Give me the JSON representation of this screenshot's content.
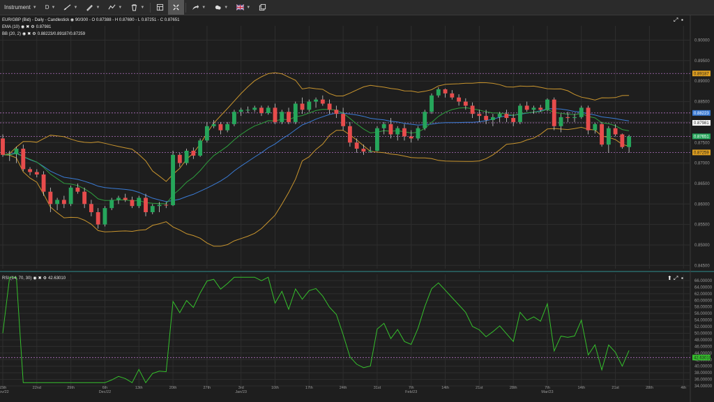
{
  "toolbar": {
    "instrument_label": "Instrument",
    "timeframe_label": "D",
    "icons": [
      "line-tool-icon",
      "brush-icon",
      "pattern-tool-icon",
      "trash-icon",
      "layout-icon",
      "crosshair-icon",
      "share-icon",
      "weather-icon",
      "flag-uk-icon",
      "windows-icon"
    ]
  },
  "header": {
    "instrument_line": "EUR/GBP (Bid) - Daily - Candlestick",
    "bars": "90/300",
    "ohlc": "- O 0.87388 - H 0.87690 - L 0.87251 - C 0.87651",
    "ema_label": "EMA (10)",
    "ema_value": "0.87981",
    "bb_label": "BB (20, 2)",
    "bb_value": "0.88223/0.89187/0.87259",
    "rsi_label": "RSI (14, 70, 30)",
    "rsi_value": "42.63010"
  },
  "colors": {
    "background": "#1e1e1e",
    "grid": "#2e2e2e",
    "up": "#26a65b",
    "down": "#e74c4c",
    "ema": "#2e9e3e",
    "bb_band": "#c9952e",
    "bb_mid": "#3a7bd5",
    "rsi": "#35c02c",
    "level_line": "#b070c0"
  },
  "chart_data": [
    {
      "type": "candlestick",
      "name": "EUR/GBP (Bid) - Daily - Candlestick",
      "ylim": [
        0.8442,
        0.9035
      ],
      "y_ticks": [
        "0.90000",
        "0.89500",
        "0.89000",
        "0.88500",
        "0.88000",
        "0.87500",
        "0.87000",
        "0.86500",
        "0.86000",
        "0.85500",
        "0.85000",
        "0.84500"
      ],
      "x_ticks": [
        {
          "label": "15th",
          "sub": "Nov/22",
          "i": 0
        },
        {
          "label": "22nd",
          "sub": "",
          "i": 5
        },
        {
          "label": "29th",
          "sub": "",
          "i": 10
        },
        {
          "label": "6th",
          "sub": "Dec/22",
          "i": 15
        },
        {
          "label": "13th",
          "sub": "",
          "i": 20
        },
        {
          "label": "20th",
          "sub": "",
          "i": 25
        },
        {
          "label": "27th",
          "sub": "",
          "i": 30
        },
        {
          "label": "3rd",
          "sub": "Jan/23",
          "i": 35
        },
        {
          "label": "10th",
          "sub": "",
          "i": 40
        },
        {
          "label": "17th",
          "sub": "",
          "i": 45
        },
        {
          "label": "24th",
          "sub": "",
          "i": 50
        },
        {
          "label": "31st",
          "sub": "",
          "i": 55
        },
        {
          "label": "7th",
          "sub": "Feb/23",
          "i": 60
        },
        {
          "label": "14th",
          "sub": "",
          "i": 65
        },
        {
          "label": "21st",
          "sub": "",
          "i": 70
        },
        {
          "label": "28th",
          "sub": "",
          "i": 75
        },
        {
          "label": "7th",
          "sub": "Mar/23",
          "i": 80
        },
        {
          "label": "14th",
          "sub": "",
          "i": 85
        },
        {
          "label": "21st",
          "sub": "",
          "i": 90
        },
        {
          "label": "28th",
          "sub": "",
          "i": 95
        },
        {
          "label": "4th",
          "sub": "",
          "i": 100
        }
      ],
      "price_tags": [
        {
          "text": "0.89187",
          "value": 0.89187,
          "color": "#e0a020",
          "text_color": "#1e1e1e"
        },
        {
          "text": "0.88223",
          "value": 0.88223,
          "color": "#3a7bd5",
          "text_color": "#ffffff"
        },
        {
          "text": "0.87981",
          "value": 0.87981,
          "color": "#ffffff",
          "text_color": "#1e1e1e"
        },
        {
          "text": "0.87651",
          "value": 0.87651,
          "color": "#26a65b",
          "text_color": "#ffffff"
        },
        {
          "text": "0.87259",
          "value": 0.87259,
          "color": "#e0a020",
          "text_color": "#1e1e1e"
        }
      ],
      "level_lines": [
        0.89187,
        0.88223,
        0.87981,
        0.87651,
        0.87259
      ],
      "candles": [
        {
          "o": 0.876,
          "h": 0.877,
          "l": 0.8715,
          "c": 0.872
        },
        {
          "o": 0.872,
          "h": 0.873,
          "l": 0.8705,
          "c": 0.8722
        },
        {
          "o": 0.8722,
          "h": 0.874,
          "l": 0.87,
          "c": 0.8735
        },
        {
          "o": 0.8735,
          "h": 0.8745,
          "l": 0.868,
          "c": 0.8685
        },
        {
          "o": 0.8685,
          "h": 0.869,
          "l": 0.867,
          "c": 0.8678
        },
        {
          "o": 0.8678,
          "h": 0.8685,
          "l": 0.8665,
          "c": 0.8672
        },
        {
          "o": 0.8672,
          "h": 0.868,
          "l": 0.862,
          "c": 0.863
        },
        {
          "o": 0.863,
          "h": 0.864,
          "l": 0.858,
          "c": 0.86
        },
        {
          "o": 0.86,
          "h": 0.8615,
          "l": 0.8585,
          "c": 0.861
        },
        {
          "o": 0.861,
          "h": 0.862,
          "l": 0.859,
          "c": 0.86
        },
        {
          "o": 0.86,
          "h": 0.8645,
          "l": 0.8595,
          "c": 0.864
        },
        {
          "o": 0.864,
          "h": 0.865,
          "l": 0.8625,
          "c": 0.863
        },
        {
          "o": 0.863,
          "h": 0.864,
          "l": 0.859,
          "c": 0.86
        },
        {
          "o": 0.86,
          "h": 0.861,
          "l": 0.857,
          "c": 0.858
        },
        {
          "o": 0.858,
          "h": 0.859,
          "l": 0.854,
          "c": 0.855
        },
        {
          "o": 0.855,
          "h": 0.8595,
          "l": 0.8545,
          "c": 0.859
        },
        {
          "o": 0.859,
          "h": 0.8615,
          "l": 0.8585,
          "c": 0.861
        },
        {
          "o": 0.861,
          "h": 0.862,
          "l": 0.86,
          "c": 0.8615
        },
        {
          "o": 0.8615,
          "h": 0.8625,
          "l": 0.8605,
          "c": 0.861
        },
        {
          "o": 0.861,
          "h": 0.8618,
          "l": 0.859,
          "c": 0.8595
        },
        {
          "o": 0.8595,
          "h": 0.862,
          "l": 0.859,
          "c": 0.8615
        },
        {
          "o": 0.8615,
          "h": 0.8625,
          "l": 0.857,
          "c": 0.858
        },
        {
          "o": 0.858,
          "h": 0.86,
          "l": 0.8575,
          "c": 0.8595
        },
        {
          "o": 0.8595,
          "h": 0.8605,
          "l": 0.858,
          "c": 0.8598
        },
        {
          "o": 0.8598,
          "h": 0.8605,
          "l": 0.859,
          "c": 0.8597
        },
        {
          "o": 0.8597,
          "h": 0.873,
          "l": 0.8595,
          "c": 0.872
        },
        {
          "o": 0.872,
          "h": 0.8725,
          "l": 0.869,
          "c": 0.87
        },
        {
          "o": 0.87,
          "h": 0.8735,
          "l": 0.8695,
          "c": 0.873
        },
        {
          "o": 0.873,
          "h": 0.8738,
          "l": 0.871,
          "c": 0.8718
        },
        {
          "o": 0.8718,
          "h": 0.876,
          "l": 0.8715,
          "c": 0.8755
        },
        {
          "o": 0.8755,
          "h": 0.88,
          "l": 0.875,
          "c": 0.879
        },
        {
          "o": 0.879,
          "h": 0.8805,
          "l": 0.8785,
          "c": 0.8795
        },
        {
          "o": 0.8795,
          "h": 0.88,
          "l": 0.877,
          "c": 0.878
        },
        {
          "o": 0.878,
          "h": 0.88,
          "l": 0.8775,
          "c": 0.8795
        },
        {
          "o": 0.8795,
          "h": 0.883,
          "l": 0.879,
          "c": 0.8825
        },
        {
          "o": 0.8825,
          "h": 0.8835,
          "l": 0.8815,
          "c": 0.883
        },
        {
          "o": 0.883,
          "h": 0.8838,
          "l": 0.8822,
          "c": 0.883
        },
        {
          "o": 0.883,
          "h": 0.884,
          "l": 0.8825,
          "c": 0.8835
        },
        {
          "o": 0.8835,
          "h": 0.884,
          "l": 0.8815,
          "c": 0.8822
        },
        {
          "o": 0.8822,
          "h": 0.884,
          "l": 0.8818,
          "c": 0.8835
        },
        {
          "o": 0.8835,
          "h": 0.8845,
          "l": 0.8795,
          "c": 0.88
        },
        {
          "o": 0.88,
          "h": 0.883,
          "l": 0.8795,
          "c": 0.8825
        },
        {
          "o": 0.8825,
          "h": 0.8835,
          "l": 0.8795,
          "c": 0.88
        },
        {
          "o": 0.88,
          "h": 0.885,
          "l": 0.8795,
          "c": 0.8845
        },
        {
          "o": 0.8845,
          "h": 0.886,
          "l": 0.882,
          "c": 0.883
        },
        {
          "o": 0.883,
          "h": 0.8855,
          "l": 0.8825,
          "c": 0.885
        },
        {
          "o": 0.885,
          "h": 0.886,
          "l": 0.8835,
          "c": 0.8855
        },
        {
          "o": 0.8855,
          "h": 0.8865,
          "l": 0.884,
          "c": 0.8845
        },
        {
          "o": 0.8845,
          "h": 0.8855,
          "l": 0.882,
          "c": 0.883
        },
        {
          "o": 0.883,
          "h": 0.884,
          "l": 0.881,
          "c": 0.882
        },
        {
          "o": 0.882,
          "h": 0.8835,
          "l": 0.878,
          "c": 0.879
        },
        {
          "o": 0.879,
          "h": 0.88,
          "l": 0.874,
          "c": 0.875
        },
        {
          "o": 0.875,
          "h": 0.876,
          "l": 0.8725,
          "c": 0.8735
        },
        {
          "o": 0.8735,
          "h": 0.8745,
          "l": 0.872,
          "c": 0.8728
        },
        {
          "o": 0.8728,
          "h": 0.874,
          "l": 0.8725,
          "c": 0.873
        },
        {
          "o": 0.873,
          "h": 0.879,
          "l": 0.8728,
          "c": 0.8785
        },
        {
          "o": 0.8785,
          "h": 0.88,
          "l": 0.877,
          "c": 0.8795
        },
        {
          "o": 0.8795,
          "h": 0.881,
          "l": 0.876,
          "c": 0.877
        },
        {
          "o": 0.877,
          "h": 0.879,
          "l": 0.8755,
          "c": 0.8785
        },
        {
          "o": 0.8785,
          "h": 0.8795,
          "l": 0.8755,
          "c": 0.8765
        },
        {
          "o": 0.8765,
          "h": 0.878,
          "l": 0.875,
          "c": 0.876
        },
        {
          "o": 0.876,
          "h": 0.879,
          "l": 0.8755,
          "c": 0.8785
        },
        {
          "o": 0.8785,
          "h": 0.883,
          "l": 0.878,
          "c": 0.8825
        },
        {
          "o": 0.8825,
          "h": 0.887,
          "l": 0.882,
          "c": 0.8865
        },
        {
          "o": 0.8865,
          "h": 0.8885,
          "l": 0.886,
          "c": 0.888
        },
        {
          "o": 0.888,
          "h": 0.8882,
          "l": 0.886,
          "c": 0.887
        },
        {
          "o": 0.887,
          "h": 0.8878,
          "l": 0.8855,
          "c": 0.886
        },
        {
          "o": 0.886,
          "h": 0.8868,
          "l": 0.884,
          "c": 0.885
        },
        {
          "o": 0.885,
          "h": 0.8858,
          "l": 0.883,
          "c": 0.884
        },
        {
          "o": 0.884,
          "h": 0.8848,
          "l": 0.881,
          "c": 0.882
        },
        {
          "o": 0.882,
          "h": 0.883,
          "l": 0.88,
          "c": 0.8815
        },
        {
          "o": 0.8815,
          "h": 0.883,
          "l": 0.8795,
          "c": 0.8805
        },
        {
          "o": 0.8805,
          "h": 0.882,
          "l": 0.879,
          "c": 0.8812
        },
        {
          "o": 0.8812,
          "h": 0.8825,
          "l": 0.88,
          "c": 0.882
        },
        {
          "o": 0.882,
          "h": 0.883,
          "l": 0.88,
          "c": 0.881
        },
        {
          "o": 0.881,
          "h": 0.882,
          "l": 0.879,
          "c": 0.88
        },
        {
          "o": 0.88,
          "h": 0.8845,
          "l": 0.8795,
          "c": 0.884
        },
        {
          "o": 0.884,
          "h": 0.885,
          "l": 0.8825,
          "c": 0.883
        },
        {
          "o": 0.883,
          "h": 0.884,
          "l": 0.882,
          "c": 0.8835
        },
        {
          "o": 0.8835,
          "h": 0.8842,
          "l": 0.8825,
          "c": 0.883
        },
        {
          "o": 0.883,
          "h": 0.8858,
          "l": 0.8826,
          "c": 0.8855
        },
        {
          "o": 0.8855,
          "h": 0.886,
          "l": 0.878,
          "c": 0.879
        },
        {
          "o": 0.879,
          "h": 0.882,
          "l": 0.8775,
          "c": 0.8812
        },
        {
          "o": 0.8812,
          "h": 0.8825,
          "l": 0.88,
          "c": 0.881
        },
        {
          "o": 0.881,
          "h": 0.882,
          "l": 0.88,
          "c": 0.8812
        },
        {
          "o": 0.8812,
          "h": 0.884,
          "l": 0.8808,
          "c": 0.8835
        },
        {
          "o": 0.8835,
          "h": 0.884,
          "l": 0.877,
          "c": 0.878
        },
        {
          "o": 0.878,
          "h": 0.8798,
          "l": 0.8772,
          "c": 0.8795
        },
        {
          "o": 0.8795,
          "h": 0.88,
          "l": 0.874,
          "c": 0.8745
        },
        {
          "o": 0.8745,
          "h": 0.879,
          "l": 0.8725,
          "c": 0.8785
        },
        {
          "o": 0.8785,
          "h": 0.8795,
          "l": 0.8765,
          "c": 0.877
        },
        {
          "o": 0.877,
          "h": 0.8772,
          "l": 0.8735,
          "c": 0.8739
        },
        {
          "o": 0.8739,
          "h": 0.8769,
          "l": 0.8725,
          "c": 0.8765
        }
      ]
    },
    {
      "type": "line",
      "name": "RSI (14, 70, 30)",
      "ylim": [
        33.8,
        67.9
      ],
      "y_ticks": [
        "66.00000",
        "64.00000",
        "62.00000",
        "60.00000",
        "58.00000",
        "56.00000",
        "54.00000",
        "52.00000",
        "50.00000",
        "48.00000",
        "46.00000",
        "44.00000",
        "42.00000",
        "40.00000",
        "38.00000",
        "36.00000",
        "34.00000"
      ],
      "level_line": 42.6301,
      "value_tag": {
        "text": "42.63010",
        "value": 42.6301,
        "color": "#35c02c",
        "text_color": "#1e1e1e"
      }
    }
  ]
}
